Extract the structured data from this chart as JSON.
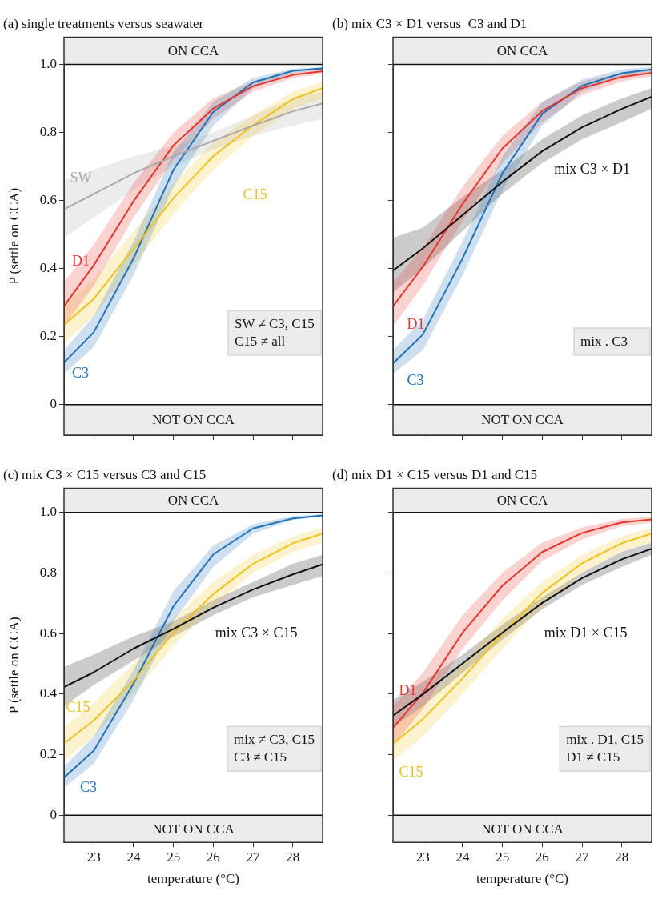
{
  "chart_data": [
    {
      "type": "line",
      "title": "(a) single treatments versus seawater",
      "ylabel": "P (settle on CCA)",
      "xlim": [
        22.25,
        28.75
      ],
      "xticks": [
        23,
        24,
        25,
        26,
        27,
        28
      ],
      "ylim": [
        -0.09,
        1.08
      ],
      "yticks": [
        0,
        0.2,
        0.4,
        0.6,
        0.8,
        {
          "value": 1,
          "label": "1.0"
        }
      ],
      "ref_lines": [
        {
          "axis": "y",
          "value": 0
        },
        {
          "axis": "y",
          "value": 1
        }
      ],
      "tick_labels": "y",
      "grid": false,
      "legend": false,
      "marker": "none",
      "x": [
        22.25,
        23,
        24,
        25,
        26,
        27,
        28,
        28.75
      ],
      "bands": [
        {
          "axis": "y",
          "from": 1,
          "to": 1.08,
          "label": "ON CCA",
          "color": "#ebeced"
        },
        {
          "axis": "y",
          "from": -0.09,
          "to": 0,
          "label": "NOT ON CCA",
          "color": "#ebeced"
        }
      ],
      "annotations": [
        "SW ≠ C3, C15",
        "C15 ≠ all"
      ],
      "series": [
        {
          "name": "SW",
          "color": "#aaaaaa",
          "values": [
            0.574,
            0.619,
            0.68,
            0.73,
            0.775,
            0.82,
            0.862,
            0.885
          ],
          "lower": [
            0.49,
            0.55,
            0.63,
            0.7,
            0.75,
            0.79,
            0.82,
            0.84
          ],
          "upper": [
            0.66,
            0.69,
            0.73,
            0.76,
            0.8,
            0.85,
            0.9,
            0.92
          ]
        },
        {
          "name": "C15",
          "color": "#f0c21a",
          "values": [
            0.234,
            0.311,
            0.459,
            0.607,
            0.73,
            0.821,
            0.898,
            0.93
          ],
          "lower": [
            0.18,
            0.26,
            0.41,
            0.56,
            0.69,
            0.79,
            0.87,
            0.9
          ],
          "upper": [
            0.29,
            0.37,
            0.51,
            0.65,
            0.77,
            0.85,
            0.92,
            0.95
          ]
        },
        {
          "name": "D1",
          "color": "#e8352b",
          "values": [
            0.289,
            0.41,
            0.598,
            0.762,
            0.87,
            0.936,
            0.969,
            0.98
          ],
          "lower": [
            0.23,
            0.35,
            0.55,
            0.72,
            0.84,
            0.92,
            0.96,
            0.972
          ],
          "upper": [
            0.36,
            0.47,
            0.65,
            0.8,
            0.9,
            0.95,
            0.977,
            0.986
          ]
        },
        {
          "name": "C3",
          "color": "#1f72b8",
          "values": [
            0.123,
            0.213,
            0.43,
            0.69,
            0.86,
            0.947,
            0.981,
            0.988
          ],
          "lower": [
            0.09,
            0.17,
            0.38,
            0.64,
            0.82,
            0.93,
            0.975,
            0.984
          ],
          "upper": [
            0.16,
            0.26,
            0.48,
            0.74,
            0.89,
            0.96,
            0.987,
            0.993
          ]
        }
      ]
    },
    {
      "type": "line",
      "title": "(b) mix C3 × D1 versus  C3 and D1",
      "xlim": [
        22.25,
        28.75
      ],
      "xticks": [
        23,
        24,
        25,
        26,
        27,
        28
      ],
      "ylim": [
        -0.09,
        1.08
      ],
      "yticks": [
        0,
        0.2,
        0.4,
        0.6,
        0.8,
        1
      ],
      "ref_lines": [
        {
          "axis": "y",
          "value": 0
        },
        {
          "axis": "y",
          "value": 1
        }
      ],
      "tick_labels": false,
      "grid": false,
      "legend": false,
      "marker": "none",
      "x": [
        22.25,
        23,
        24,
        25,
        26,
        27,
        28,
        28.75
      ],
      "bands": [
        {
          "axis": "y",
          "from": 1,
          "to": 1.08,
          "label": "ON CCA",
          "color": "#ebeced"
        },
        {
          "axis": "y",
          "from": -0.09,
          "to": 0,
          "label": "NOT ON CCA",
          "color": "#ebeced"
        }
      ],
      "annotations": [
        "mix . C3"
      ],
      "series": [
        {
          "name": "mix C3 × D1",
          "color": "#111111",
          "values": [
            0.394,
            0.459,
            0.557,
            0.655,
            0.745,
            0.815,
            0.869,
            0.905
          ],
          "lower": [
            0.33,
            0.4,
            0.51,
            0.62,
            0.71,
            0.78,
            0.83,
            0.87
          ],
          "upper": [
            0.49,
            0.52,
            0.61,
            0.69,
            0.78,
            0.85,
            0.9,
            0.93
          ]
        },
        {
          "name": "D1",
          "color": "#e8352b",
          "values": [
            0.289,
            0.405,
            0.59,
            0.753,
            0.863,
            0.93,
            0.963,
            0.975
          ],
          "lower": [
            0.23,
            0.35,
            0.54,
            0.71,
            0.83,
            0.91,
            0.95,
            0.965
          ],
          "upper": [
            0.36,
            0.46,
            0.64,
            0.79,
            0.89,
            0.95,
            0.975,
            0.985
          ]
        },
        {
          "name": "C3",
          "color": "#1f72b8",
          "values": [
            0.121,
            0.206,
            0.43,
            0.68,
            0.855,
            0.937,
            0.974,
            0.985
          ],
          "lower": [
            0.09,
            0.16,
            0.38,
            0.63,
            0.82,
            0.92,
            0.965,
            0.978
          ],
          "upper": [
            0.16,
            0.25,
            0.48,
            0.73,
            0.89,
            0.955,
            0.985,
            0.992
          ]
        }
      ]
    },
    {
      "type": "line",
      "title": "(c) mix C3 × C15 versus C3 and C15",
      "xlabel": "temperature (°C)",
      "ylabel": "P (settle on CCA)",
      "xlim": [
        22.25,
        28.75
      ],
      "xticks": [
        23,
        24,
        25,
        26,
        27,
        28
      ],
      "ylim": [
        -0.09,
        1.08
      ],
      "yticks": [
        0,
        0.2,
        0.4,
        0.6,
        0.8,
        {
          "value": 1,
          "label": "1.0"
        }
      ],
      "ref_lines": [
        {
          "axis": "y",
          "value": 0
        },
        {
          "axis": "y",
          "value": 1
        }
      ],
      "grid": false,
      "legend": false,
      "marker": "none",
      "x": [
        22.25,
        23,
        24,
        25,
        26,
        27,
        28,
        28.75
      ],
      "bands": [
        {
          "axis": "y",
          "from": 1,
          "to": 1.08,
          "label": "ON CCA",
          "color": "#ebeced"
        },
        {
          "axis": "y",
          "from": -0.09,
          "to": 0,
          "label": "NOT ON CCA",
          "color": "#ebeced"
        }
      ],
      "annotations": [
        "mix ≠ C3, C15",
        "C3 ≠ C15"
      ],
      "series": [
        {
          "name": "mix C3 × C15",
          "color": "#111111",
          "values": [
            0.423,
            0.472,
            0.55,
            0.615,
            0.685,
            0.745,
            0.795,
            0.828
          ],
          "lower": [
            0.36,
            0.43,
            0.51,
            0.59,
            0.66,
            0.72,
            0.76,
            0.79
          ],
          "upper": [
            0.49,
            0.53,
            0.59,
            0.64,
            0.71,
            0.77,
            0.83,
            0.86
          ]
        },
        {
          "name": "C15",
          "color": "#f0c21a",
          "values": [
            0.237,
            0.313,
            0.444,
            0.603,
            0.73,
            0.83,
            0.898,
            0.93
          ],
          "lower": [
            0.18,
            0.26,
            0.4,
            0.56,
            0.69,
            0.8,
            0.87,
            0.9
          ],
          "upper": [
            0.29,
            0.37,
            0.5,
            0.65,
            0.77,
            0.86,
            0.92,
            0.95
          ]
        },
        {
          "name": "C3",
          "color": "#1f72b8",
          "values": [
            0.124,
            0.213,
            0.435,
            0.69,
            0.861,
            0.947,
            0.98,
            0.99
          ],
          "lower": [
            0.09,
            0.17,
            0.38,
            0.64,
            0.82,
            0.93,
            0.975,
            0.985
          ],
          "upper": [
            0.16,
            0.26,
            0.48,
            0.74,
            0.89,
            0.96,
            0.988,
            0.994
          ]
        }
      ]
    },
    {
      "type": "line",
      "title": "(d) mix D1 × C15 versus D1 and C15",
      "xlabel": "temperature (°C)",
      "xlim": [
        22.25,
        28.75
      ],
      "xticks": [
        23,
        24,
        25,
        26,
        27,
        28
      ],
      "ylim": [
        -0.09,
        1.08
      ],
      "yticks": [
        0,
        0.2,
        0.4,
        0.6,
        0.8,
        1
      ],
      "ref_lines": [
        {
          "axis": "y",
          "value": 0
        },
        {
          "axis": "y",
          "value": 1
        }
      ],
      "tick_labels": "x",
      "grid": false,
      "legend": false,
      "marker": "none",
      "x": [
        22.25,
        23,
        24,
        25,
        26,
        27,
        28,
        28.75
      ],
      "bands": [
        {
          "axis": "y",
          "from": 1,
          "to": 1.08,
          "label": "ON CCA",
          "color": "#ebeced"
        },
        {
          "axis": "y",
          "from": -0.09,
          "to": 0,
          "label": "NOT ON CCA",
          "color": "#ebeced"
        }
      ],
      "annotations": [
        "mix . D1, C15",
        "D1 ≠ C15"
      ],
      "series": [
        {
          "name": "mix D1 × C15",
          "color": "#111111",
          "values": [
            0.329,
            0.399,
            0.501,
            0.603,
            0.701,
            0.783,
            0.845,
            0.88
          ],
          "lower": [
            0.29,
            0.36,
            0.47,
            0.58,
            0.68,
            0.76,
            0.82,
            0.86
          ],
          "upper": [
            0.38,
            0.44,
            0.53,
            0.63,
            0.72,
            0.8,
            0.87,
            0.9
          ]
        },
        {
          "name": "C15",
          "color": "#f0c21a",
          "values": [
            0.235,
            0.317,
            0.452,
            0.599,
            0.734,
            0.832,
            0.898,
            0.93
          ],
          "lower": [
            0.18,
            0.26,
            0.4,
            0.55,
            0.69,
            0.8,
            0.87,
            0.9
          ],
          "upper": [
            0.29,
            0.37,
            0.5,
            0.65,
            0.77,
            0.86,
            0.92,
            0.95
          ]
        },
        {
          "name": "D1",
          "color": "#e8352b",
          "values": [
            0.288,
            0.403,
            0.603,
            0.758,
            0.869,
            0.932,
            0.967,
            0.977
          ],
          "lower": [
            0.23,
            0.35,
            0.55,
            0.71,
            0.84,
            0.91,
            0.955,
            0.967
          ],
          "upper": [
            0.36,
            0.47,
            0.66,
            0.8,
            0.9,
            0.95,
            0.978,
            0.986
          ]
        }
      ]
    }
  ]
}
